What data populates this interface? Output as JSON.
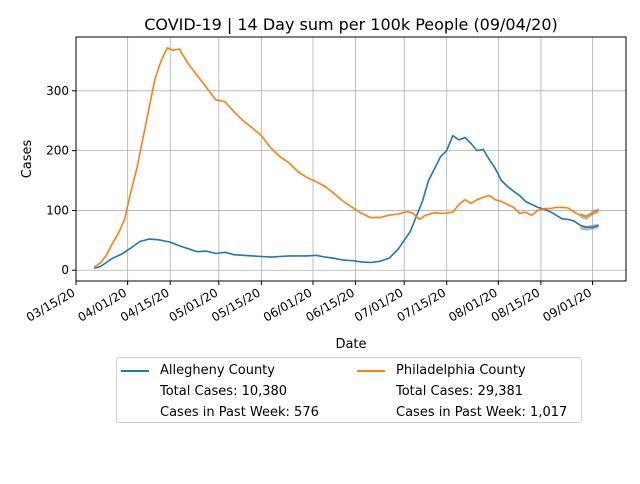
{
  "chart_data": {
    "type": "line",
    "title": "COVID-19 | 14 Day sum per 100k People (09/04/20)",
    "xlabel": "Date",
    "ylabel": "Cases",
    "xlim": [
      "2020-03-15",
      "2020-09-12"
    ],
    "ylim": [
      -18,
      390
    ],
    "grid": true,
    "xticks": [
      "03/15/20",
      "04/01/20",
      "04/15/20",
      "05/01/20",
      "05/15/20",
      "06/01/20",
      "06/15/20",
      "07/01/20",
      "07/15/20",
      "08/01/20",
      "08/15/20",
      "09/01/20"
    ],
    "yticks": [
      0,
      100,
      200,
      300
    ],
    "legend_position": "below",
    "series": [
      {
        "name": "Allegheny County",
        "color": "#1f77b4",
        "total_cases_label": "Total Cases: 10,380",
        "past_week_label": "Cases in Past Week: 576",
        "points": [
          [
            "2020-03-21",
            3
          ],
          [
            "2020-03-23",
            6
          ],
          [
            "2020-03-25",
            13
          ],
          [
            "2020-03-27",
            20
          ],
          [
            "2020-03-30",
            27
          ],
          [
            "2020-04-02",
            37
          ],
          [
            "2020-04-05",
            48
          ],
          [
            "2020-04-08",
            52
          ],
          [
            "2020-04-11",
            51
          ],
          [
            "2020-04-15",
            47
          ],
          [
            "2020-04-18",
            41
          ],
          [
            "2020-04-21",
            36
          ],
          [
            "2020-04-24",
            31
          ],
          [
            "2020-04-27",
            32
          ],
          [
            "2020-04-30",
            28
          ],
          [
            "2020-05-03",
            30
          ],
          [
            "2020-05-06",
            26
          ],
          [
            "2020-05-09",
            25
          ],
          [
            "2020-05-12",
            24
          ],
          [
            "2020-05-15",
            23
          ],
          [
            "2020-05-18",
            22
          ],
          [
            "2020-05-21",
            23
          ],
          [
            "2020-05-24",
            24
          ],
          [
            "2020-05-27",
            24
          ],
          [
            "2020-05-30",
            24
          ],
          [
            "2020-06-02",
            25
          ],
          [
            "2020-06-05",
            22
          ],
          [
            "2020-06-08",
            20
          ],
          [
            "2020-06-11",
            17
          ],
          [
            "2020-06-14",
            16
          ],
          [
            "2020-06-17",
            14
          ],
          [
            "2020-06-20",
            13
          ],
          [
            "2020-06-23",
            15
          ],
          [
            "2020-06-26",
            20
          ],
          [
            "2020-06-29",
            35
          ],
          [
            "2020-07-01",
            50
          ],
          [
            "2020-07-03",
            65
          ],
          [
            "2020-07-05",
            90
          ],
          [
            "2020-07-07",
            115
          ],
          [
            "2020-07-09",
            150
          ],
          [
            "2020-07-11",
            170
          ],
          [
            "2020-07-13",
            190
          ],
          [
            "2020-07-15",
            200
          ],
          [
            "2020-07-17",
            225
          ],
          [
            "2020-07-19",
            218
          ],
          [
            "2020-07-21",
            222
          ],
          [
            "2020-07-23",
            212
          ],
          [
            "2020-07-25",
            200
          ],
          [
            "2020-07-27",
            202
          ],
          [
            "2020-07-29",
            185
          ],
          [
            "2020-07-31",
            170
          ],
          [
            "2020-08-02",
            150
          ],
          [
            "2020-08-04",
            140
          ],
          [
            "2020-08-06",
            132
          ],
          [
            "2020-08-08",
            125
          ],
          [
            "2020-08-10",
            115
          ],
          [
            "2020-08-12",
            110
          ],
          [
            "2020-08-14",
            105
          ],
          [
            "2020-08-16",
            102
          ],
          [
            "2020-08-18",
            98
          ],
          [
            "2020-08-20",
            92
          ],
          [
            "2020-08-22",
            86
          ],
          [
            "2020-08-24",
            85
          ],
          [
            "2020-08-26",
            82
          ],
          [
            "2020-08-28",
            75
          ],
          [
            "2020-08-30",
            72
          ],
          [
            "2020-09-01",
            72
          ],
          [
            "2020-09-03",
            75
          ]
        ],
        "projection": [
          [
            "2020-08-28",
            72
          ],
          [
            "2020-08-30",
            70
          ],
          [
            "2020-09-01",
            72
          ],
          [
            "2020-09-03",
            74
          ]
        ]
      },
      {
        "name": "Philadelphia County",
        "color": "#ff7f0e",
        "total_cases_label": "Total Cases: 29,381",
        "past_week_label": "Cases in Past Week: 1,017",
        "points": [
          [
            "2020-03-21",
            5
          ],
          [
            "2020-03-23",
            12
          ],
          [
            "2020-03-25",
            25
          ],
          [
            "2020-03-27",
            45
          ],
          [
            "2020-03-29",
            62
          ],
          [
            "2020-03-31",
            85
          ],
          [
            "2020-04-02",
            130
          ],
          [
            "2020-04-04",
            170
          ],
          [
            "2020-04-06",
            220
          ],
          [
            "2020-04-08",
            270
          ],
          [
            "2020-04-10",
            320
          ],
          [
            "2020-04-12",
            350
          ],
          [
            "2020-04-14",
            372
          ],
          [
            "2020-04-16",
            368
          ],
          [
            "2020-04-18",
            370
          ],
          [
            "2020-04-21",
            345
          ],
          [
            "2020-04-24",
            325
          ],
          [
            "2020-04-27",
            305
          ],
          [
            "2020-04-30",
            285
          ],
          [
            "2020-05-03",
            282
          ],
          [
            "2020-05-06",
            265
          ],
          [
            "2020-05-09",
            250
          ],
          [
            "2020-05-12",
            238
          ],
          [
            "2020-05-15",
            225
          ],
          [
            "2020-05-18",
            205
          ],
          [
            "2020-05-21",
            190
          ],
          [
            "2020-05-24",
            180
          ],
          [
            "2020-05-27",
            165
          ],
          [
            "2020-05-30",
            155
          ],
          [
            "2020-06-02",
            148
          ],
          [
            "2020-06-05",
            140
          ],
          [
            "2020-06-08",
            128
          ],
          [
            "2020-06-11",
            115
          ],
          [
            "2020-06-14",
            105
          ],
          [
            "2020-06-17",
            95
          ],
          [
            "2020-06-20",
            88
          ],
          [
            "2020-06-23",
            88
          ],
          [
            "2020-06-26",
            92
          ],
          [
            "2020-06-29",
            94
          ],
          [
            "2020-07-02",
            98
          ],
          [
            "2020-07-04",
            95
          ],
          [
            "2020-07-06",
            85
          ],
          [
            "2020-07-08",
            92
          ],
          [
            "2020-07-11",
            96
          ],
          [
            "2020-07-14",
            95
          ],
          [
            "2020-07-17",
            97
          ],
          [
            "2020-07-19",
            110
          ],
          [
            "2020-07-21",
            118
          ],
          [
            "2020-07-23",
            112
          ],
          [
            "2020-07-25",
            118
          ],
          [
            "2020-07-27",
            122
          ],
          [
            "2020-07-29",
            125
          ],
          [
            "2020-07-31",
            118
          ],
          [
            "2020-08-02",
            115
          ],
          [
            "2020-08-04",
            110
          ],
          [
            "2020-08-06",
            105
          ],
          [
            "2020-08-08",
            95
          ],
          [
            "2020-08-10",
            97
          ],
          [
            "2020-08-12",
            92
          ],
          [
            "2020-08-14",
            100
          ],
          [
            "2020-08-16",
            103
          ],
          [
            "2020-08-18",
            103
          ],
          [
            "2020-08-20",
            105
          ],
          [
            "2020-08-22",
            105
          ],
          [
            "2020-08-24",
            104
          ],
          [
            "2020-08-26",
            97
          ],
          [
            "2020-08-28",
            92
          ],
          [
            "2020-08-30",
            90
          ],
          [
            "2020-09-01",
            95
          ],
          [
            "2020-09-03",
            100
          ]
        ],
        "projection": [
          [
            "2020-08-28",
            92
          ],
          [
            "2020-08-30",
            88
          ],
          [
            "2020-09-01",
            96
          ],
          [
            "2020-09-03",
            100
          ]
        ]
      }
    ]
  }
}
